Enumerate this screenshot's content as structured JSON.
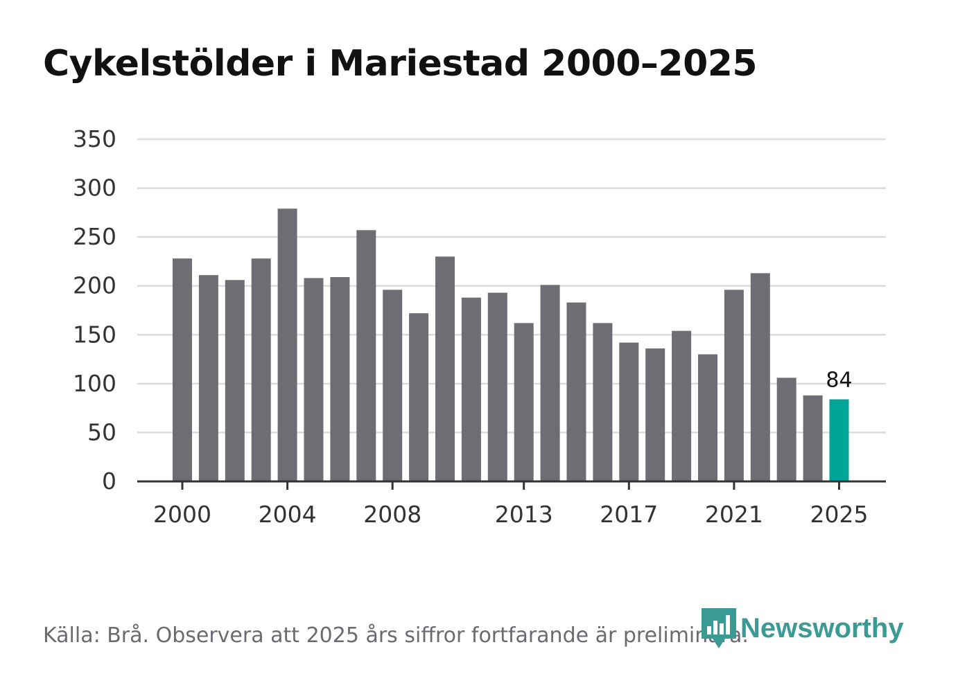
{
  "title": "Cykelstölder i Mariestad 2000–2025",
  "source_note": "Källa: Brå. Observera att 2025 års siffror fortfarande är preliminära.",
  "brand": {
    "name": "Newsworthy",
    "icon": "bar-chart-logo-icon",
    "color": "#3a9a94"
  },
  "colors": {
    "bar": "#6e6d73",
    "highlight": "#00a59a",
    "grid": "#dcdcdc",
    "axis": "#333333"
  },
  "chart_data": {
    "type": "bar",
    "title": "Cykelstölder i Mariestad 2000–2025",
    "xlabel": "",
    "ylabel": "",
    "ylim": [
      0,
      350
    ],
    "yticks": [
      0,
      50,
      100,
      150,
      200,
      250,
      300,
      350
    ],
    "xtick_labels": [
      "2000",
      "2004",
      "2008",
      "2013",
      "2017",
      "2021",
      "2025"
    ],
    "categories": [
      "2000",
      "2001",
      "2002",
      "2003",
      "2004",
      "2005",
      "2006",
      "2007",
      "2008",
      "2009",
      "2010",
      "2011",
      "2012",
      "2013",
      "2014",
      "2015",
      "2016",
      "2017",
      "2018",
      "2019",
      "2020",
      "2021",
      "2022",
      "2023",
      "2024",
      "2025"
    ],
    "values": [
      228,
      211,
      206,
      228,
      279,
      208,
      209,
      257,
      196,
      172,
      230,
      188,
      193,
      162,
      201,
      183,
      162,
      142,
      136,
      154,
      130,
      196,
      213,
      106,
      88,
      84
    ],
    "highlight_category": "2025",
    "data_labels": [
      {
        "category": "2025",
        "text": "84"
      }
    ],
    "grid": true
  }
}
